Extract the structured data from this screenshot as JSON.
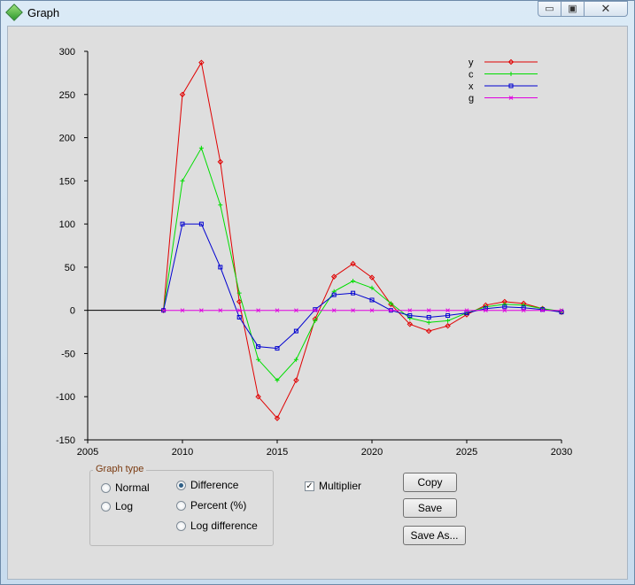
{
  "window": {
    "title": "Graph",
    "icon": "green-diamond-icon"
  },
  "chart_data": {
    "type": "line",
    "xlim": [
      2005,
      2030
    ],
    "ylim": [
      -150,
      300
    ],
    "xticks": [
      "2005",
      "2010",
      "2015",
      "2020",
      "2025",
      "2030"
    ],
    "yticks": [
      "300",
      "250",
      "200",
      "150",
      "100",
      "50",
      "0",
      "-50",
      "-100",
      "-150"
    ],
    "grid": false,
    "legend_position": "top-right",
    "baseline_x_start": 2005,
    "series": [
      {
        "name": "y",
        "color": "#e00000",
        "marker": "diamond",
        "x": [
          2009,
          2010,
          2011,
          2012,
          2013,
          2014,
          2015,
          2016,
          2017,
          2018,
          2019,
          2020,
          2021,
          2022,
          2023,
          2024,
          2025,
          2026,
          2027,
          2028,
          2029,
          2030
        ],
        "values": [
          0,
          250,
          287,
          172,
          10,
          -100,
          -125,
          -81,
          -10,
          39,
          54,
          38,
          7,
          -16,
          -24,
          -18,
          -5,
          6,
          10,
          8,
          2,
          -2
        ]
      },
      {
        "name": "c",
        "color": "#00dd00",
        "marker": "plus",
        "x": [
          2009,
          2010,
          2011,
          2012,
          2013,
          2014,
          2015,
          2016,
          2017,
          2018,
          2019,
          2020,
          2021,
          2022,
          2023,
          2024,
          2025,
          2026,
          2027,
          2028,
          2029,
          2030
        ],
        "values": [
          0,
          150,
          188,
          122,
          20,
          -57,
          -81,
          -57,
          -12,
          22,
          34,
          26,
          8,
          -9,
          -14,
          -12,
          -3,
          4,
          7,
          6,
          2,
          -1
        ]
      },
      {
        "name": "x",
        "color": "#0000d0",
        "marker": "square",
        "x": [
          2009,
          2010,
          2011,
          2012,
          2013,
          2014,
          2015,
          2016,
          2017,
          2018,
          2019,
          2020,
          2021,
          2022,
          2023,
          2024,
          2025,
          2026,
          2027,
          2028,
          2029,
          2030
        ],
        "values": [
          0,
          100,
          100,
          50,
          -8,
          -42,
          -44,
          -24,
          1,
          18,
          20,
          12,
          0,
          -6,
          -8,
          -6,
          -3,
          2,
          4,
          3,
          1,
          -2
        ]
      },
      {
        "name": "g",
        "color": "#e000e0",
        "marker": "x",
        "x": [
          2009,
          2010,
          2011,
          2012,
          2013,
          2014,
          2015,
          2016,
          2017,
          2018,
          2019,
          2020,
          2021,
          2022,
          2023,
          2024,
          2025,
          2026,
          2027,
          2028,
          2029,
          2030
        ],
        "values": [
          0,
          0,
          0,
          0,
          0,
          0,
          0,
          0,
          0,
          0,
          0,
          0,
          0,
          0,
          0,
          0,
          0,
          0,
          0,
          0,
          0,
          0
        ]
      }
    ]
  },
  "controls": {
    "graph_type_title": "Graph type",
    "radios": [
      {
        "label": "Normal",
        "checked": false
      },
      {
        "label": "Log",
        "checked": false
      },
      {
        "label": "Difference",
        "checked": true
      },
      {
        "label": "Percent (%)",
        "checked": false
      },
      {
        "label": "Log difference",
        "checked": false
      }
    ],
    "multiplier_label": "Multiplier",
    "multiplier_checked": true,
    "copy_label": "Copy",
    "save_label": "Save",
    "save_as_label": "Save As..."
  }
}
